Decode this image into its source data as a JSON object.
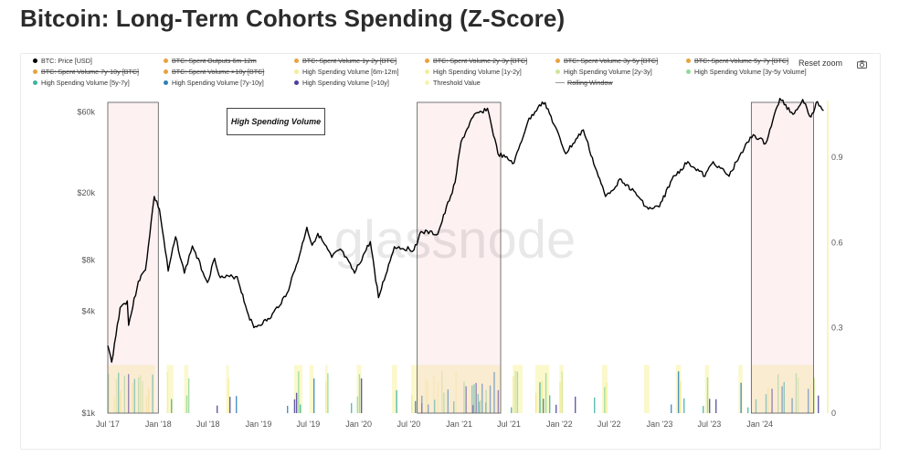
{
  "title": "Bitcoin: Long-Term Cohorts Spending (Z-Score)",
  "toolbar": {
    "reset_zoom": "Reset zoom"
  },
  "legend": [
    {
      "label": "BTC: Price [USD]",
      "color": "#000000",
      "off": false,
      "kind": "dot"
    },
    {
      "label": "BTC: Spent Outputs 6m-12m",
      "color": "#e8a33d",
      "off": true,
      "kind": "dot"
    },
    {
      "label": "BTC: Spent Volume 1y-2y [BTC]",
      "color": "#e8a33d",
      "off": true,
      "kind": "dot"
    },
    {
      "label": "BTC: Spent Volume 2y-3y [BTC]",
      "color": "#e8a33d",
      "off": true,
      "kind": "dot"
    },
    {
      "label": "BTC: Spent Volume 3y-5y [BTC]",
      "color": "#e8a33d",
      "off": true,
      "kind": "dot"
    },
    {
      "label": "BTC: Spent Volume 5y-7y [BTC]",
      "color": "#e8a33d",
      "off": true,
      "kind": "dot"
    },
    {
      "label": "BTC: Spent Volume 7y-10y [BTC]",
      "color": "#e8a33d",
      "off": true,
      "kind": "dot"
    },
    {
      "label": "BTC: Spent Volume >10y [BTC]",
      "color": "#e8a33d",
      "off": true,
      "kind": "dot"
    },
    {
      "label": "High Spending Volume [6m-12m]",
      "color": "#f3ee9a",
      "off": false,
      "kind": "dot"
    },
    {
      "label": "High Spending Volume [1y-2y]",
      "color": "#f3ee9a",
      "off": false,
      "kind": "dot"
    },
    {
      "label": "High Spending Volume [2y-3y]",
      "color": "#cfe59a",
      "off": false,
      "kind": "dot"
    },
    {
      "label": "High Spending Volume [3y-5y Volume]",
      "color": "#94d89a",
      "off": false,
      "kind": "dot"
    },
    {
      "label": "High Spending Volume [5y-7y]",
      "color": "#3fb3a0",
      "off": false,
      "kind": "dot"
    },
    {
      "label": "High Spending Volume [7y-10y]",
      "color": "#2f7fb8",
      "off": false,
      "kind": "dot"
    },
    {
      "label": "High Spending Volume [>10y]",
      "color": "#4b3f9c",
      "off": false,
      "kind": "dot"
    },
    {
      "label": "Threshold Value",
      "color": "#f7f3b0",
      "off": false,
      "kind": "dot"
    },
    {
      "label": "Rolling Window",
      "color": "#999999",
      "off": true,
      "kind": "line"
    }
  ],
  "annotation": "High Spending Volume",
  "watermark": "glassnode",
  "chart_data": {
    "type": "line",
    "xlabel": "",
    "ylabel": "",
    "x_ticks": [
      "Jul '17",
      "Jan '18",
      "Jul '18",
      "Jan '19",
      "Jul '19",
      "Jan '20",
      "Jul '20",
      "Jan '21",
      "Jul '21",
      "Jan '22",
      "Jul '22",
      "Jan '23",
      "Jul '23",
      "Jan '24"
    ],
    "x_range": [
      "2017-07-01",
      "2024-09-01"
    ],
    "y_left": {
      "scale": "log",
      "ticks": [
        "$1k",
        "$4k",
        "$8k",
        "$20k",
        "$60k"
      ],
      "tick_values": [
        1000,
        4000,
        8000,
        20000,
        60000
      ],
      "range": [
        1000,
        70000
      ]
    },
    "y_right": {
      "scale": "linear",
      "ticks": [
        "0",
        "0.3",
        "0.6",
        "0.9"
      ],
      "tick_values": [
        0,
        0.3,
        0.6,
        0.9
      ],
      "range": [
        0,
        1.1
      ]
    },
    "series": [
      {
        "name": "BTC: Price [USD]",
        "axis": "left",
        "color": "#000000",
        "points": [
          [
            "2017-07-01",
            2500
          ],
          [
            "2017-07-15",
            2000
          ],
          [
            "2017-08-15",
            4200
          ],
          [
            "2017-09-10",
            4600
          ],
          [
            "2017-09-15",
            3300
          ],
          [
            "2017-10-20",
            6000
          ],
          [
            "2017-11-15",
            7000
          ],
          [
            "2017-12-17",
            19000
          ],
          [
            "2018-01-05",
            16000
          ],
          [
            "2018-02-06",
            6900
          ],
          [
            "2018-03-05",
            11000
          ],
          [
            "2018-04-06",
            6700
          ],
          [
            "2018-05-05",
            9700
          ],
          [
            "2018-06-29",
            5900
          ],
          [
            "2018-07-25",
            8200
          ],
          [
            "2018-08-15",
            6300
          ],
          [
            "2018-10-15",
            6400
          ],
          [
            "2018-11-25",
            3800
          ],
          [
            "2018-12-15",
            3200
          ],
          [
            "2019-02-10",
            3600
          ],
          [
            "2019-04-15",
            5100
          ],
          [
            "2019-05-30",
            8500
          ],
          [
            "2019-06-26",
            12500
          ],
          [
            "2019-07-15",
            9800
          ],
          [
            "2019-08-05",
            11500
          ],
          [
            "2019-09-25",
            8300
          ],
          [
            "2019-10-26",
            9300
          ],
          [
            "2019-12-17",
            6700
          ],
          [
            "2020-02-12",
            10300
          ],
          [
            "2020-03-13",
            4800
          ],
          [
            "2020-05-10",
            9600
          ],
          [
            "2020-07-20",
            9200
          ],
          [
            "2020-08-15",
            11800
          ],
          [
            "2020-10-15",
            11400
          ],
          [
            "2020-12-17",
            23000
          ],
          [
            "2021-01-08",
            40000
          ],
          [
            "2021-02-20",
            56000
          ],
          [
            "2021-04-14",
            63000
          ],
          [
            "2021-05-22",
            34000
          ],
          [
            "2021-07-20",
            30000
          ],
          [
            "2021-09-07",
            52000
          ],
          [
            "2021-10-20",
            66000
          ],
          [
            "2021-11-10",
            68000
          ],
          [
            "2022-01-24",
            34000
          ],
          [
            "2022-03-29",
            47000
          ],
          [
            "2022-05-12",
            28000
          ],
          [
            "2022-06-18",
            19000
          ],
          [
            "2022-08-14",
            24000
          ],
          [
            "2022-10-15",
            19000
          ],
          [
            "2022-11-21",
            16000
          ],
          [
            "2022-12-31",
            16500
          ],
          [
            "2023-02-15",
            24000
          ],
          [
            "2023-04-14",
            30500
          ],
          [
            "2023-06-15",
            25000
          ],
          [
            "2023-07-15",
            30500
          ],
          [
            "2023-09-11",
            25000
          ],
          [
            "2023-10-25",
            34500
          ],
          [
            "2023-12-08",
            44000
          ],
          [
            "2024-01-22",
            39000
          ],
          [
            "2024-03-14",
            72000
          ],
          [
            "2024-05-01",
            58000
          ],
          [
            "2024-06-05",
            71000
          ],
          [
            "2024-07-05",
            56000
          ],
          [
            "2024-07-29",
            69000
          ],
          [
            "2024-08-20",
            61000
          ]
        ]
      }
    ],
    "highlight_periods": [
      [
        "2017-07-01",
        "2018-01-01"
      ],
      [
        "2020-08-01",
        "2021-06-01"
      ],
      [
        "2023-12-01",
        "2024-07-15"
      ]
    ],
    "threshold_bands": [
      [
        "2017-07-01",
        "2017-12-20"
      ],
      [
        "2018-02-01",
        "2018-02-25"
      ],
      [
        "2018-04-05",
        "2018-04-20"
      ],
      [
        "2018-09-05",
        "2018-09-15"
      ],
      [
        "2019-05-10",
        "2019-06-10"
      ],
      [
        "2019-07-05",
        "2019-07-20"
      ],
      [
        "2019-09-01",
        "2019-09-10"
      ],
      [
        "2019-12-25",
        "2020-01-10"
      ],
      [
        "2020-05-01",
        "2020-05-20"
      ],
      [
        "2020-07-10",
        "2021-06-01"
      ],
      [
        "2021-07-15",
        "2021-08-20"
      ],
      [
        "2021-10-05",
        "2021-11-25"
      ],
      [
        "2022-01-01",
        "2022-01-15"
      ],
      [
        "2022-06-05",
        "2022-06-25"
      ],
      [
        "2022-11-05",
        "2022-11-25"
      ],
      [
        "2023-03-01",
        "2023-03-20"
      ],
      [
        "2023-06-15",
        "2023-06-30"
      ],
      [
        "2023-10-15",
        "2023-10-30"
      ],
      [
        "2023-12-01",
        "2024-07-15"
      ]
    ],
    "bar_legend": [
      "6m-12m",
      "1y-2y",
      "2y-3y",
      "3y-5y",
      "5y-7y",
      "7y-10y",
      ">10y"
    ],
    "bar_colors": [
      "#f3ee9a",
      "#f1e98a",
      "#cfe59a",
      "#94d89a",
      "#3fb3a0",
      "#2f7fb8",
      "#4b3f9c"
    ],
    "bar_base_value": 0.15
  }
}
